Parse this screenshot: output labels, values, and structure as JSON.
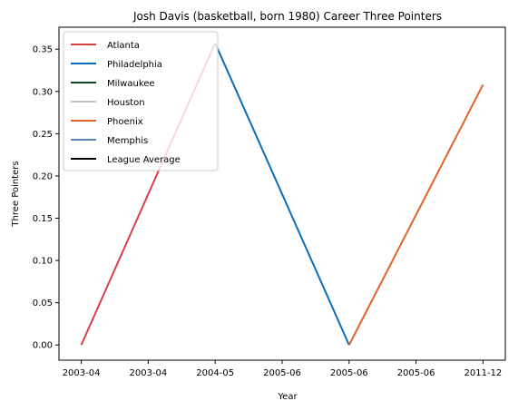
{
  "chart_data": {
    "type": "line",
    "title": "Josh Davis (basketball, born 1980) Career Three Pointers",
    "xlabel": "Year",
    "ylabel": "Three Pointers",
    "categories": [
      "2003-04",
      "2003-04",
      "2004-05",
      "2005-06",
      "2005-06",
      "2005-06",
      "2011-12"
    ],
    "ylim": [
      -0.018,
      0.376
    ],
    "yticks": [
      0.0,
      0.05,
      0.1,
      0.15,
      0.2,
      0.25,
      0.3,
      0.35
    ],
    "ytick_labels": [
      "0.00",
      "0.05",
      "0.10",
      "0.15",
      "0.20",
      "0.25",
      "0.30",
      "0.35"
    ],
    "grid": false,
    "legend_position": "top-left",
    "series": [
      {
        "name": "Atlanta",
        "color": "#d64045",
        "points": [
          [
            0,
            0.0
          ],
          [
            2,
            0.357
          ]
        ]
      },
      {
        "name": "Philadelphia",
        "color": "#0a6db7",
        "points": [
          [
            2,
            0.357
          ],
          [
            4,
            0.0
          ]
        ]
      },
      {
        "name": "Milwaukee",
        "color": "#0b4a20",
        "points": []
      },
      {
        "name": "Houston",
        "color": "#c0c0c0",
        "points": []
      },
      {
        "name": "Phoenix",
        "color": "#e0632b",
        "points": [
          [
            4,
            0.0
          ],
          [
            6,
            0.308
          ]
        ]
      },
      {
        "name": "Memphis",
        "color": "#5b84b8",
        "points": []
      },
      {
        "name": "League Average",
        "color": "#000000",
        "points": []
      }
    ]
  }
}
